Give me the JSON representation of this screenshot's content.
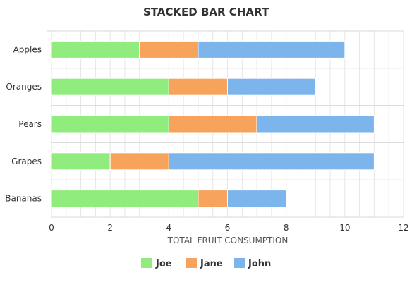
{
  "chart_data": {
    "type": "bar",
    "orientation": "horizontal",
    "stacked": true,
    "title": "STACKED BAR CHART",
    "xlabel": "TOTAL FRUIT CONSUMPTION",
    "ylabel": "",
    "categories": [
      "Apples",
      "Oranges",
      "Pears",
      "Grapes",
      "Bananas"
    ],
    "series": [
      {
        "name": "Joe",
        "color": "#90ed7d",
        "values": [
          3,
          4,
          4,
          2,
          5
        ]
      },
      {
        "name": "Jane",
        "color": "#f7a35c",
        "values": [
          2,
          2,
          3,
          2,
          1
        ]
      },
      {
        "name": "John",
        "color": "#7cb5ec",
        "values": [
          5,
          3,
          4,
          7,
          2
        ]
      }
    ],
    "xlim": [
      0,
      12
    ],
    "x_ticks": [
      0,
      2,
      4,
      6,
      8,
      10,
      12
    ],
    "grid": true,
    "legend_position": "bottom"
  }
}
